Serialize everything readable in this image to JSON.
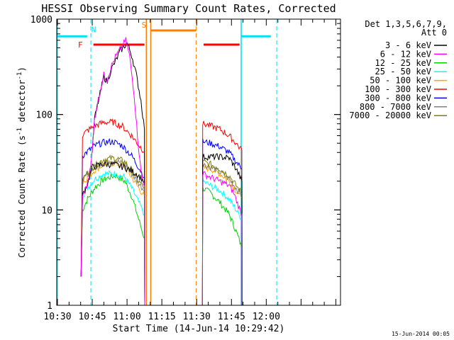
{
  "chart_data": {
    "type": "line",
    "title": "HESSI Observing Summary Count Rates, Corrected",
    "xlabel": "Start Time (14-Jun-14 10:29:42)",
    "ylabel_main": "Corrected Count Rate (s",
    "ylabel_sup": "-1",
    "ylabel_mid": " detector",
    "ylabel_end": ")",
    "yscale": "log",
    "ylim": [
      1,
      1000
    ],
    "xlim_min": [
      629.7,
      752
    ],
    "x_ticks": [
      {
        "m": 630,
        "label": "10:30"
      },
      {
        "m": 645,
        "label": "10:45"
      },
      {
        "m": 660,
        "label": "11:00"
      },
      {
        "m": 675,
        "label": "11:15"
      },
      {
        "m": 690,
        "label": "11:30"
      },
      {
        "m": 705,
        "label": "11:45"
      },
      {
        "m": 720,
        "label": "12:00"
      }
    ],
    "y_ticks": [
      {
        "v": 1,
        "label": "1"
      },
      {
        "v": 10,
        "label": "10"
      },
      {
        "v": 100,
        "label": "100"
      },
      {
        "v": 1000,
        "label": "1000"
      }
    ],
    "legend_header": [
      "Det 1,3,5,6,7,9,",
      "Att 0"
    ],
    "legend_placement": "right",
    "footer_date": "15-Jun-2014 00:05",
    "series": [
      {
        "name": "3 - 6 keV",
        "color": "#000000",
        "a": [
          [
            640.2,
            2
          ],
          [
            640.8,
            14
          ],
          [
            643,
            19
          ],
          [
            645,
            28
          ],
          [
            649,
            30
          ],
          [
            654,
            30
          ],
          [
            659,
            28
          ],
          [
            664,
            24
          ],
          [
            667.5,
            20
          ],
          [
            667.6,
            1
          ]
        ],
        "a_main": [
          [
            645,
            40
          ],
          [
            646,
            90
          ],
          [
            648,
            150
          ],
          [
            650,
            250
          ],
          [
            651.5,
            220
          ],
          [
            653,
            290
          ],
          [
            655,
            360
          ],
          [
            657,
            460
          ],
          [
            660,
            560
          ],
          [
            662,
            420
          ],
          [
            664,
            260
          ],
          [
            666,
            140
          ],
          [
            667.5,
            70
          ],
          [
            667.6,
            1
          ]
        ],
        "b": [
          [
            692.5,
            1
          ],
          [
            692.6,
            36
          ],
          [
            696,
            36
          ],
          [
            700,
            36
          ],
          [
            704,
            35
          ],
          [
            707,
            27
          ],
          [
            709.5,
            20
          ],
          [
            709.6,
            1
          ]
        ]
      },
      {
        "name": "6 - 12 keV",
        "color": "#ff00ff",
        "a": [
          [
            640.2,
            2
          ],
          [
            640.8,
            14
          ],
          [
            643,
            19
          ],
          [
            645,
            40
          ],
          [
            646,
            90
          ],
          [
            648,
            160
          ],
          [
            650,
            260
          ],
          [
            651.5,
            230
          ],
          [
            653,
            310
          ],
          [
            655,
            400
          ],
          [
            657,
            480
          ],
          [
            659.5,
            600
          ],
          [
            661,
            420
          ],
          [
            663,
            170
          ],
          [
            664.5,
            60
          ],
          [
            666,
            25
          ],
          [
            667.5,
            18
          ],
          [
            667.6,
            1
          ]
        ],
        "b": [
          [
            692.5,
            1
          ],
          [
            692.6,
            24
          ],
          [
            696,
            22
          ],
          [
            700,
            20
          ],
          [
            704,
            18
          ],
          [
            706,
            15
          ],
          [
            708,
            11
          ],
          [
            709.5,
            9
          ],
          [
            709.6,
            1
          ]
        ]
      },
      {
        "name": "12 - 25 keV",
        "color": "#00d000",
        "a": [
          [
            640.2,
            2
          ],
          [
            640.8,
            10
          ],
          [
            643,
            13
          ],
          [
            646,
            17
          ],
          [
            650,
            21
          ],
          [
            655,
            23
          ],
          [
            659,
            20
          ],
          [
            662,
            14
          ],
          [
            665,
            8
          ],
          [
            667.5,
            5
          ],
          [
            667.6,
            1
          ]
        ],
        "b": [
          [
            692.5,
            1
          ],
          [
            692.6,
            17
          ],
          [
            696,
            15
          ],
          [
            700,
            12
          ],
          [
            704,
            9
          ],
          [
            707,
            6
          ],
          [
            709.5,
            4
          ],
          [
            709.6,
            1
          ]
        ]
      },
      {
        "name": "25 - 50 keV",
        "color": "#00ffff",
        "a": [
          [
            640.2,
            2
          ],
          [
            640.8,
            14
          ],
          [
            643,
            17
          ],
          [
            646,
            21
          ],
          [
            650,
            24
          ],
          [
            655,
            24
          ],
          [
            659,
            22
          ],
          [
            662,
            17
          ],
          [
            665,
            12
          ],
          [
            667.5,
            9
          ],
          [
            667.6,
            1
          ]
        ],
        "b": [
          [
            692.5,
            1
          ],
          [
            692.6,
            20
          ],
          [
            696,
            18
          ],
          [
            700,
            16
          ],
          [
            704,
            13
          ],
          [
            707,
            10
          ],
          [
            709.5,
            8
          ],
          [
            709.6,
            1
          ]
        ]
      },
      {
        "name": "50 - 100 keV",
        "color": "#ffa500",
        "a": [
          [
            640.2,
            2
          ],
          [
            640.8,
            19
          ],
          [
            643,
            22
          ],
          [
            646,
            26
          ],
          [
            650,
            30
          ],
          [
            655,
            31
          ],
          [
            659,
            28
          ],
          [
            662,
            22
          ],
          [
            665,
            17
          ],
          [
            667.5,
            14
          ],
          [
            667.6,
            1
          ]
        ],
        "b": [
          [
            692.5,
            1
          ],
          [
            692.6,
            28
          ],
          [
            696,
            27
          ],
          [
            700,
            24
          ],
          [
            704,
            20
          ],
          [
            707,
            16
          ],
          [
            709.5,
            13
          ],
          [
            709.6,
            1
          ]
        ]
      },
      {
        "name": "100 - 300 keV",
        "color": "#ff0000",
        "a": [
          [
            640.2,
            2
          ],
          [
            640.8,
            61
          ],
          [
            643,
            68
          ],
          [
            646,
            76
          ],
          [
            650,
            83
          ],
          [
            654,
            83
          ],
          [
            658,
            75
          ],
          [
            662,
            60
          ],
          [
            665,
            48
          ],
          [
            667.5,
            41
          ],
          [
            667.6,
            1
          ]
        ],
        "b": [
          [
            692.5,
            1
          ],
          [
            692.6,
            80
          ],
          [
            696,
            76
          ],
          [
            700,
            70
          ],
          [
            704,
            60
          ],
          [
            707,
            50
          ],
          [
            709.5,
            42
          ],
          [
            709.6,
            1
          ]
        ]
      },
      {
        "name": "300 - 800 keV",
        "color": "#0000ff",
        "a": [
          [
            640.2,
            2
          ],
          [
            640.8,
            37
          ],
          [
            643,
            41
          ],
          [
            646,
            47
          ],
          [
            650,
            51
          ],
          [
            654,
            52
          ],
          [
            658,
            47
          ],
          [
            662,
            37
          ],
          [
            665,
            28
          ],
          [
            667.5,
            22
          ],
          [
            667.6,
            1
          ]
        ],
        "b": [
          [
            692.5,
            1
          ],
          [
            692.6,
            52
          ],
          [
            696,
            50
          ],
          [
            700,
            46
          ],
          [
            704,
            40
          ],
          [
            707,
            32
          ],
          [
            709.5,
            27
          ],
          [
            709.6,
            1
          ]
        ]
      },
      {
        "name": "800 - 7000 keV",
        "color": "#808080",
        "a": [
          [
            640.2,
            2
          ],
          [
            640.8,
            20
          ],
          [
            643,
            24
          ],
          [
            646,
            28
          ],
          [
            650,
            32
          ],
          [
            655,
            33
          ],
          [
            659,
            30
          ],
          [
            662,
            24
          ],
          [
            665,
            19
          ],
          [
            667.5,
            16
          ],
          [
            667.6,
            1
          ]
        ],
        "b": [
          [
            692.5,
            1
          ],
          [
            692.6,
            30
          ],
          [
            696,
            28
          ],
          [
            700,
            25
          ],
          [
            704,
            21
          ],
          [
            707,
            17
          ],
          [
            709.5,
            14
          ],
          [
            709.6,
            1
          ]
        ]
      },
      {
        "name": "7000 - 20000 keV",
        "color": "#808000",
        "a": [
          [
            640.2,
            2
          ],
          [
            640.8,
            20
          ],
          [
            643,
            25
          ],
          [
            646,
            29
          ],
          [
            650,
            34
          ],
          [
            655,
            35
          ],
          [
            659,
            32
          ],
          [
            662,
            26
          ],
          [
            665,
            20
          ],
          [
            667.5,
            17
          ],
          [
            667.6,
            1
          ]
        ],
        "b": [
          [
            692.5,
            1
          ],
          [
            692.6,
            32
          ],
          [
            696,
            30
          ],
          [
            700,
            27
          ],
          [
            704,
            23
          ],
          [
            707,
            18
          ],
          [
            709.5,
            15
          ],
          [
            709.6,
            1
          ]
        ]
      }
    ],
    "annotations": [
      {
        "label": "N",
        "color": "#00d8f0",
        "at": 644.4
      },
      {
        "label": "F",
        "color": "#ff0000",
        "at": 641.5
      },
      {
        "label": "S",
        "color": "#ff8000",
        "at": 668.5
      }
    ],
    "flag_bars": [
      {
        "name": "night",
        "color": "#00e0f0",
        "ranges": [
          [
            630,
            642.8
          ],
          [
            709.3,
            722
          ]
        ],
        "y": 660
      },
      {
        "name": "flare",
        "color": "#ff0000",
        "ranges": [
          [
            645.5,
            667.5
          ],
          [
            693,
            708.5
          ]
        ],
        "y": 540
      },
      {
        "name": "saa",
        "color": "#ff8000",
        "ranges": [
          [
            670.2,
            689.8
          ]
        ],
        "y": 760
      }
    ],
    "vlines": [
      {
        "color": "#00e0f0",
        "dashed": true,
        "at": 644.4
      },
      {
        "color": "#00e0f0",
        "dashed": true,
        "at": 724.5
      },
      {
        "color": "#00e0f0",
        "dashed": false,
        "at": 629.9
      },
      {
        "color": "#00e0f0",
        "dashed": false,
        "at": 709.2
      },
      {
        "color": "#ff8000",
        "dashed": false,
        "at": 668.3
      },
      {
        "color": "#ff8000",
        "dashed": false,
        "at": 670.2
      },
      {
        "color": "#ff8000",
        "dashed": true,
        "at": 689.8
      }
    ]
  }
}
